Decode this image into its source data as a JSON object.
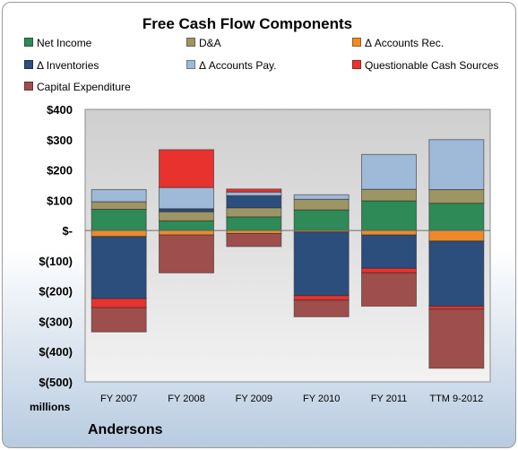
{
  "colors": {
    "net_income": "#2e8a56",
    "da": "#9e9565",
    "accounts_rec": "#ee8a2a",
    "inventories": "#2b4e7c",
    "accounts_pay": "#9fb9d9",
    "questionable": "#e8322e",
    "capex": "#9e4f4d"
  },
  "chart_data": {
    "type": "bar",
    "stacked": true,
    "title": "Free Cash Flow Components",
    "ylabel": "millions",
    "company": "Andersons",
    "ylim": [
      -500,
      400
    ],
    "y_ticks": [
      400,
      300,
      200,
      100,
      0,
      -100,
      -200,
      -300,
      -400,
      -500
    ],
    "y_tick_labels": [
      "$400",
      "$300",
      "$200",
      "$100",
      "$-",
      "$(100)",
      "$(200)",
      "$(300)",
      "$(400)",
      "$(500)"
    ],
    "categories": [
      "FY 2007",
      "FY 2008",
      "FY 2009",
      "FY 2010",
      "FY 2011",
      "TTM 9-2012"
    ],
    "legend_position": "top",
    "series": [
      {
        "name": "Net Income",
        "key": "net_income",
        "values": [
          70,
          32,
          45,
          68,
          98,
          90
        ]
      },
      {
        "name": "D&A",
        "key": "da",
        "values": [
          25,
          30,
          30,
          35,
          38,
          45
        ]
      },
      {
        "name": "Δ Accounts Rec.",
        "key": "accounts_rec",
        "values": [
          -20,
          -15,
          -10,
          -5,
          -15,
          -35
        ]
      },
      {
        "name": "Δ Inventories",
        "key": "inventories",
        "values": [
          -205,
          10,
          40,
          -210,
          -110,
          -215
        ]
      },
      {
        "name": "Δ Accounts Pay.",
        "key": "accounts_pay",
        "values": [
          40,
          70,
          12,
          15,
          115,
          165
        ]
      },
      {
        "name": "Questionable Cash Sources",
        "key": "questionable",
        "values": [
          -30,
          125,
          10,
          -15,
          -15,
          -10
        ]
      },
      {
        "name": "Capital Expenditure",
        "key": "capex",
        "values": [
          -80,
          -125,
          -43,
          -55,
          -110,
          -195
        ]
      }
    ]
  }
}
